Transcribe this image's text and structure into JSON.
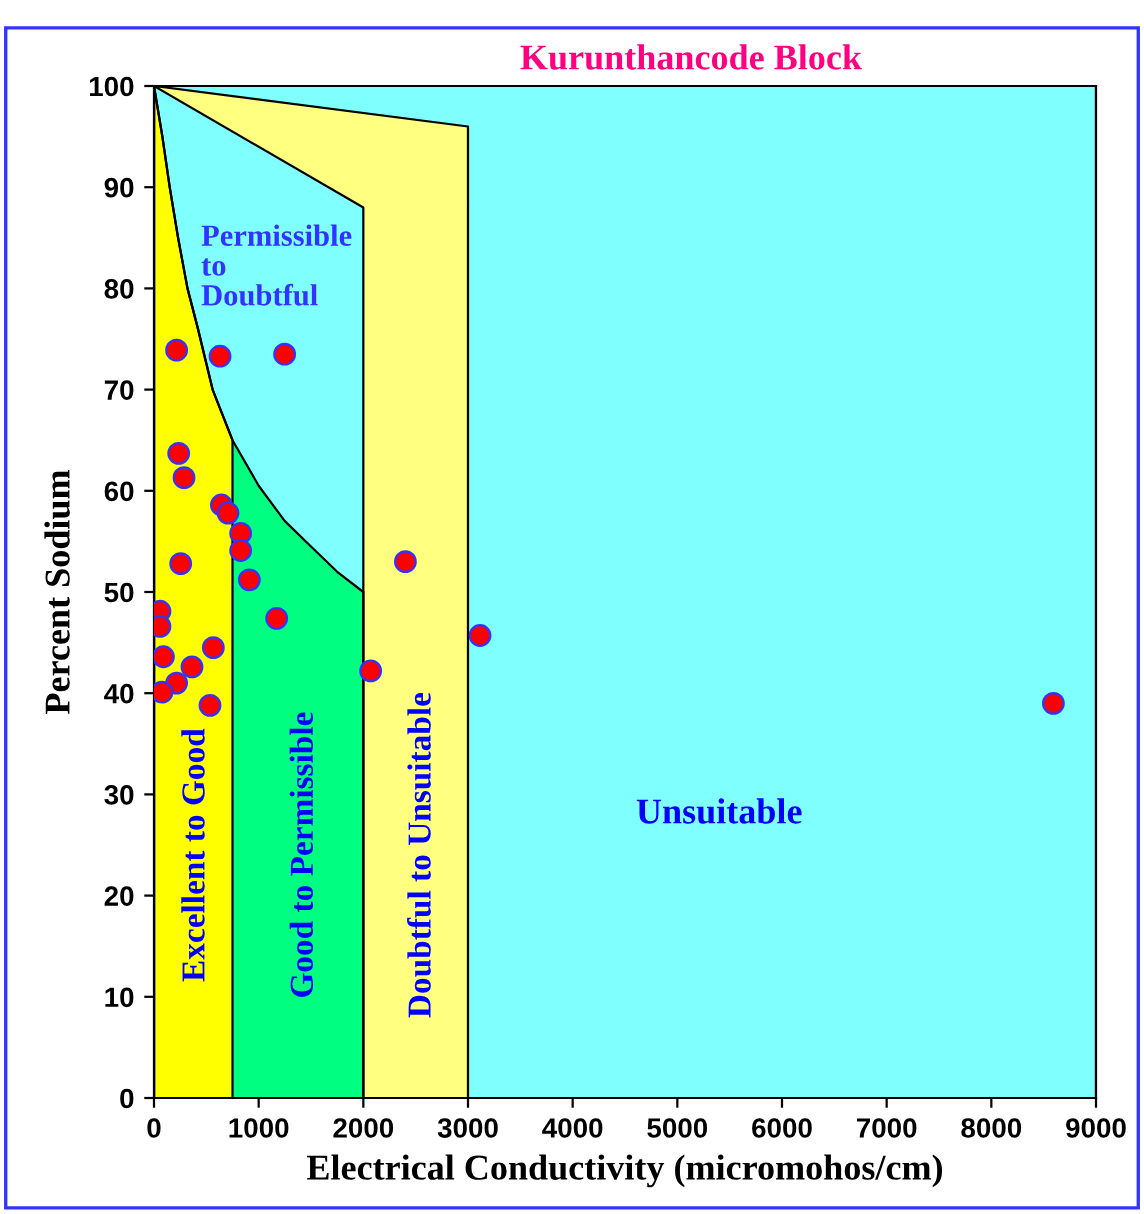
{
  "chart_data": {
    "type": "scatter",
    "title": "Kurunthancode Block",
    "xlabel": "Electrical Conductivity (micromohos/cm)",
    "ylabel": "Percent Sodium",
    "x": [
      216,
      631,
      1248,
      236,
      287,
      644,
      707,
      828,
      828,
      255,
      2402,
      911,
      1172,
      57,
      57,
      90,
      567,
      363,
      216,
      76,
      535,
      2070,
      3115,
      8593
    ],
    "values": [
      73.9,
      73.3,
      73.5,
      63.7,
      61.3,
      58.6,
      57.8,
      55.8,
      54.1,
      52.8,
      53.0,
      51.2,
      47.4,
      48.1,
      46.6,
      43.6,
      44.5,
      42.6,
      41.0,
      40.1,
      38.8,
      42.2,
      45.7,
      39.0
    ],
    "color": "#ff0000",
    "marker": "circle",
    "xlim": [
      0,
      9000
    ],
    "ylim": [
      0,
      100
    ],
    "xticks": [
      0,
      1000,
      2000,
      3000,
      4000,
      5000,
      6000,
      7000,
      8000,
      9000
    ],
    "yticks": [
      0,
      10,
      20,
      30,
      40,
      50,
      60,
      70,
      80,
      90,
      100
    ],
    "grid": false,
    "legend": false,
    "annotations": [
      "Permissible to Doubtful",
      "Excellent to Good",
      "Good to Permissible",
      "Doubtful to Unsuitable",
      "Unsuitable"
    ]
  }
}
